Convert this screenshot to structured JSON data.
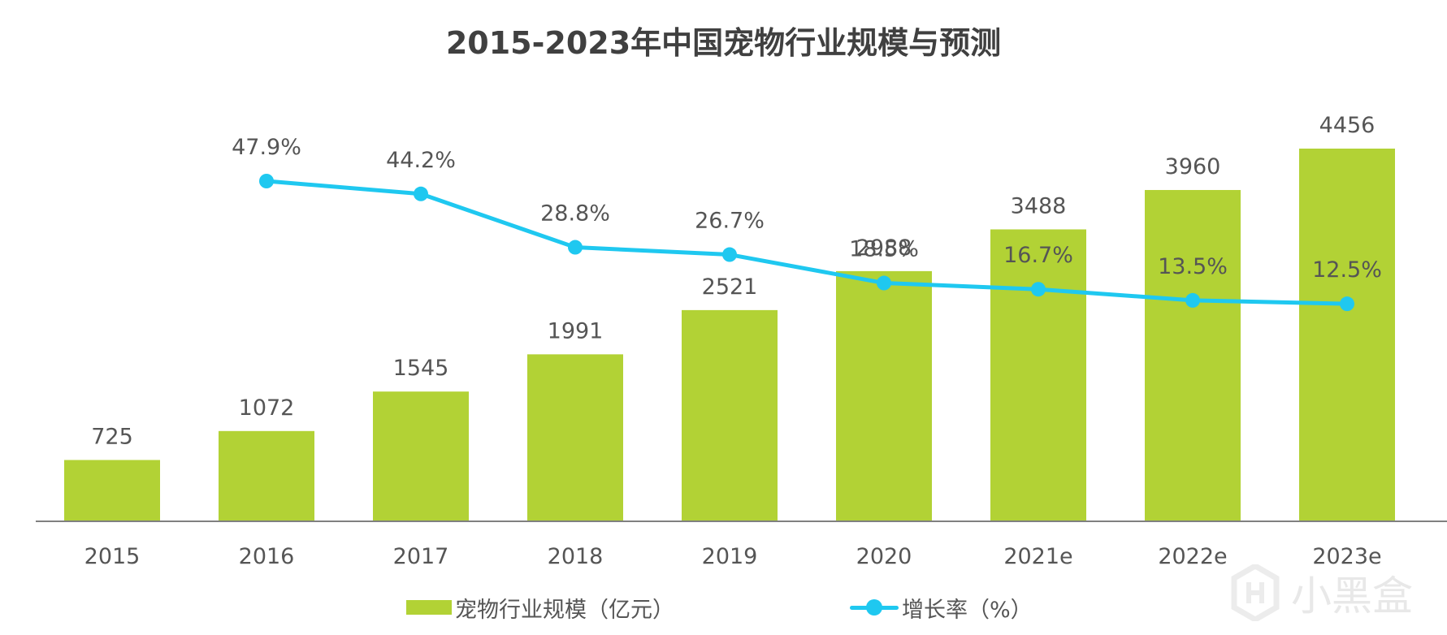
{
  "chart_data": {
    "type": "bar+line",
    "title": "2015-2023年中国宠物行业规模与预测",
    "categories": [
      "2015",
      "2016",
      "2017",
      "2018",
      "2019",
      "2020",
      "2021e",
      "2022e",
      "2023e"
    ],
    "series": [
      {
        "name": "宠物行业规模（亿元）",
        "type": "bar",
        "color": "#b2d235",
        "values": [
          725,
          1072,
          1545,
          1991,
          2521,
          2988,
          3488,
          3960,
          4456
        ],
        "labels": [
          "725",
          "1072",
          "1545",
          "1991",
          "2521",
          "2988",
          "3488",
          "3960",
          "4456"
        ]
      },
      {
        "name": "增长率（%）",
        "type": "line",
        "color": "#1fc8f0",
        "values": [
          null,
          47.9,
          44.2,
          28.8,
          26.7,
          18.5,
          16.7,
          13.5,
          12.5
        ],
        "labels": [
          "",
          "47.9%",
          "44.2%",
          "28.8%",
          "26.7%",
          "18.5%",
          "16.7%",
          "13.5%",
          "12.5%"
        ]
      }
    ],
    "xlabel": "",
    "ylabel": "",
    "ylim": [
      0,
      4500
    ],
    "y2lim": [
      0,
      50
    ],
    "grid": false,
    "legend_position": "bottom-center"
  },
  "legend": {
    "bar_label": "宠物行业规模（亿元）",
    "line_label": "增长率（%）"
  },
  "watermark": {
    "text": "小黑盒"
  }
}
